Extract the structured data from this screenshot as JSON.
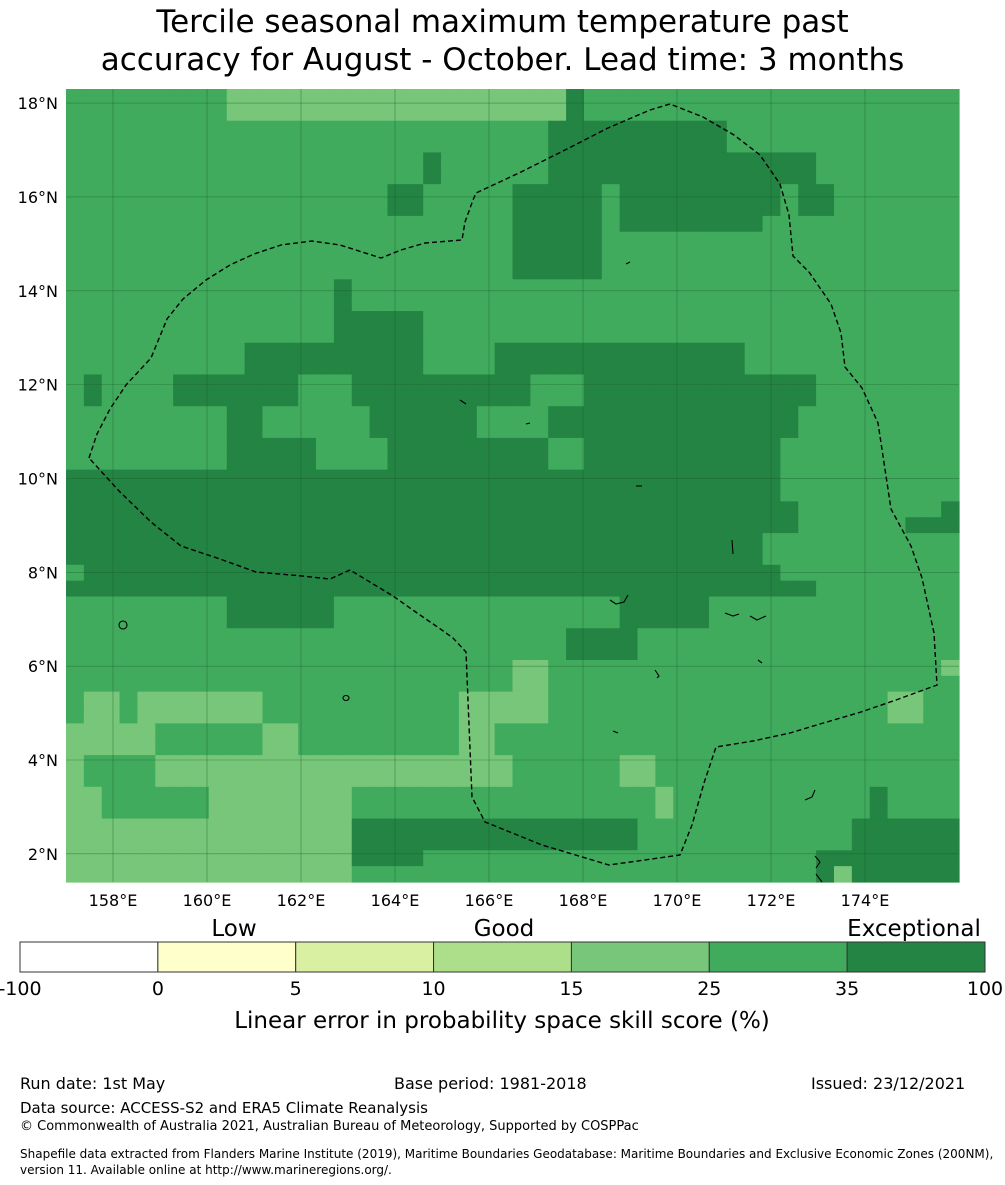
{
  "title_line1": "Tercile seasonal maximum temperature past",
  "title_line2": "accuracy for August - October. Lead time: 3 months",
  "map": {
    "lat_labels": [
      "18°N",
      "16°N",
      "14°N",
      "12°N",
      "10°N",
      "8°N",
      "6°N",
      "4°N",
      "2°N"
    ],
    "lat_values": [
      18,
      16,
      14,
      12,
      10,
      8,
      6,
      4,
      2
    ],
    "lon_labels": [
      "158°E",
      "160°E",
      "162°E",
      "164°E",
      "166°E",
      "168°E",
      "170°E",
      "172°E",
      "174°E"
    ],
    "lon_values": [
      158,
      160,
      162,
      164,
      166,
      168,
      170,
      172,
      174
    ],
    "extent": {
      "lon_min": 157.0,
      "lon_max": 176.0,
      "lat_min": 1.4,
      "lat_max": 18.3
    },
    "category_colors": {
      "4": "#addf8b",
      "5": "#77c679",
      "6": "#41ab5d",
      "7": "#238443"
    },
    "grid_rows_top_to_bottom": [
      "66666666655555555555555555557666666666666666666666",
      "66666666655555555555555555557666666666666666666666",
      "66666666666666666666666666677777777776666666666666",
      "66666666666666666666666666677777777776666666666666",
      "66666666666666666666766666677777777777777766666666",
      "66666666666666666666766666677777777777777766666666",
      "66666666666666666677666667777767777777776776666666",
      "66666666666666666677666667777767777777776776666666",
      "66666666666666666666666667777767777777766666666666",
      "66666666666666666666666667777766666666666666666666",
      "66666666666666666666666667777766666666666666666666",
      "66666666666666666666666667777766666666666666666666",
      "66666666666666676666666666666666666666666666666666",
      "66666666666666676666666666666666666666666666666666",
      "66666666666666677777666666666666666666666666666666",
      "66666666666666677777666666666666666666666666666666",
      "66666666667777777777666677777777777777666666666666",
      "66666666667777777777666677777777777777666666666666",
      "67666677777776667777777777666777777777777766666666",
      "67666677777776667777777777666777777777777766666666",
      "66666666677666666777777666677777777777777666666666",
      "66666666677666666777777666677777777777777666666666",
      "66666666677777666677777777766777777777776666666666",
      "66666666677777666677777777766777777777776666666666",
      "77777777777777777777777777777777777777776666666666",
      "77777777777777777777777777777777777777776666666666",
      "77777777777777777777777777777777777777777666666667",
      "77777777777777777777777777777777777777777666666777",
      "77777777777777777777777777777777777777766666666666",
      "77777777777777777777777777777777777777766666666666",
      "67777777777777777777777777777777777777776666666666",
      "77777777777777777777777777777777777777777766666666",
      "66666666677777766666666666666667777766666666666666",
      "66666666677777766666666666666667777766666666666666",
      "66666666666666666666666666667777666666666666666666",
      "66666666666666666666666666667777666666666666666666",
      "66666666666666666666666665566666666666666666666665",
      "66666666666666666666666665566666666666666666666666",
      "65565555555666666666665555566666666666666666665566",
      "65565555555666666666665555566666666666666666665566",
      "55555666666556666666665566666666666666666666666666",
      "55555666666556666666665566666666666666666666666666",
      "56666555555555555555555556666665566666666666666666",
      "56666555555555555555555556666665566666666666666666",
      "55666666555555556666666666666666656666666666676666",
      "55666666555555556666666666666666656666666666676666",
      "55555555555555557777777777777777666666666666777777",
      "55555555555555557777777777777777666666666666777777",
      "55555555555555557777666666666666666666666677777777",
      "55555555555555556666666666666666666666666675777777"
    ]
  },
  "colorbar": {
    "header_low": "Low",
    "header_good": "Good",
    "header_exceptional": "Exceptional",
    "boundaries": [
      "-100",
      "0",
      "5",
      "10",
      "15",
      "25",
      "35",
      "100"
    ],
    "colors": [
      "#ffffff",
      "#ffffcc",
      "#d9f0a3",
      "#addf8b",
      "#77c679",
      "#41ab5d",
      "#238443"
    ],
    "label": "Linear error in probability space skill score (%)"
  },
  "footer": {
    "run_date": "Run date: 1st May",
    "base_period": "Base period: 1981-2018",
    "issued": "Issued: 23/12/2021",
    "data_source": "Data source: ACCESS-S2 and ERA5 Climate Reanalysis",
    "copyright": "© Commonwealth of Australia 2021, Australian Bureau of Meteorology, Supported by COSPPac",
    "shapefile": "Shapefile data extracted from Flanders Marine Institute (2019), Maritime Boundaries Geodatabase: Maritime Boundaries and Exclusive Economic Zones (200NM), version 11. Available online at http://www.marineregions.org/."
  }
}
